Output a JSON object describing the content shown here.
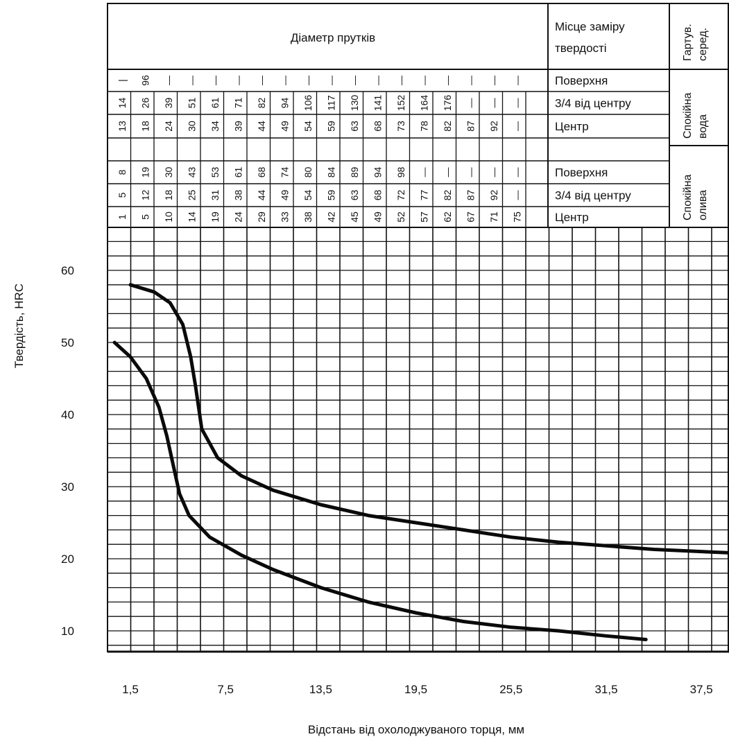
{
  "header": {
    "diameter_title": "Діаметр прутків",
    "measure_place_line1": "Місце заміру",
    "measure_place_line2": "твердості",
    "medium_line1": "Гартув.",
    "medium_line2": "серед.",
    "water_line1": "Спокійна",
    "water_line2": "вода",
    "oil_line1": "Спокійна",
    "oil_line2": "олива"
  },
  "table_rows": [
    {
      "place": "Поверхня",
      "cells": [
        "|",
        "96",
        "—",
        "—",
        "—",
        "—",
        "—",
        "—",
        "—",
        "—",
        "—",
        "—",
        "—",
        "—",
        "—",
        "—",
        "—",
        "—"
      ]
    },
    {
      "place": "3/4 від центру",
      "cells": [
        "14",
        "26",
        "39",
        "51",
        "61",
        "71",
        "82",
        "94",
        "106",
        "117",
        "130",
        "141",
        "152",
        "164",
        "176",
        "—",
        "—",
        "—"
      ]
    },
    {
      "place": "Центр",
      "cells": [
        "13",
        "18",
        "24",
        "30",
        "34",
        "39",
        "44",
        "49",
        "54",
        "59",
        "63",
        "68",
        "73",
        "78",
        "82",
        "87",
        "92",
        "—"
      ]
    },
    {
      "place": "",
      "cells": [
        "",
        "",
        "",
        "",
        "",
        "",
        "",
        "",
        "",
        "",
        "",
        "",
        "",
        "",
        "",
        "",
        "",
        ""
      ]
    },
    {
      "place": "Поверхня",
      "cells": [
        "8",
        "19",
        "30",
        "43",
        "53",
        "61",
        "68",
        "74",
        "80",
        "84",
        "89",
        "94",
        "98",
        "—",
        "—",
        "—",
        "—",
        "—"
      ]
    },
    {
      "place": "3/4 від центру",
      "cells": [
        "5",
        "12",
        "18",
        "25",
        "31",
        "38",
        "44",
        "49",
        "54",
        "59",
        "63",
        "68",
        "72",
        "77",
        "82",
        "87",
        "92",
        "—"
      ]
    },
    {
      "place": "Центр",
      "cells": [
        "1",
        "5",
        "10",
        "14",
        "19",
        "24",
        "29",
        "33",
        "38",
        "42",
        "45",
        "49",
        "52",
        "57",
        "62",
        "67",
        "71",
        "75"
      ]
    }
  ],
  "chart_data": {
    "type": "line",
    "title": "",
    "xlabel": "Відстань від охолоджуваного торця, мм",
    "ylabel": "Твердість, HRC",
    "x_ticks": [
      "1,5",
      "7,5",
      "13,5",
      "19,5",
      "25,5",
      "31,5",
      "37,5"
    ],
    "y_ticks": [
      "10",
      "20",
      "30",
      "40",
      "50",
      "60"
    ],
    "xlim": [
      0,
      40.5
    ],
    "ylim": [
      6,
      65
    ],
    "grid": true,
    "series": [
      {
        "x": [
          1.5,
          3,
          4,
          4.8,
          5.3,
          5.6,
          6,
          7,
          8.5,
          10.5,
          13.5,
          16.5,
          19.5,
          22.5,
          25.5,
          28.5,
          31.5,
          34.5,
          37.5,
          39.5
        ],
        "y": [
          58,
          57,
          55.5,
          52.5,
          48,
          44,
          38,
          34,
          31.5,
          29.5,
          27.5,
          26,
          25,
          24,
          23,
          22.3,
          21.8,
          21.3,
          21,
          20.8
        ]
      },
      {
        "x": [
          0.5,
          1.5,
          2.5,
          3.3,
          3.8,
          4.2,
          4.6,
          5.2,
          6.5,
          8.5,
          10.5,
          13.5,
          16.5,
          19.5,
          22.5,
          25.5,
          28.5,
          31.5,
          34
        ],
        "y": [
          50,
          48,
          45,
          41,
          37,
          33,
          29,
          26,
          23,
          20.5,
          18.5,
          16,
          14,
          12.5,
          11.3,
          10.5,
          10,
          9.3,
          8.8
        ]
      }
    ]
  }
}
